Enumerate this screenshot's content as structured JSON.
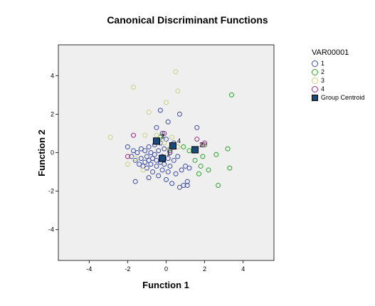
{
  "chart_data": {
    "type": "scatter",
    "title": "Canonical Discriminant Functions",
    "xlabel": "Function 1",
    "ylabel": "Function 2",
    "xlim": [
      -5.6,
      5.6
    ],
    "ylim": [
      -5.6,
      5.6
    ],
    "xticks": [
      -4,
      -2,
      0,
      2,
      4
    ],
    "yticks": [
      -4,
      -2,
      0,
      2,
      4
    ],
    "grid": false,
    "background": "#efefef",
    "legend": {
      "title": "VAR00001",
      "placement": "right"
    },
    "series": [
      {
        "name": "1",
        "color": "#3b4aa6",
        "marker": "circle",
        "points": [
          [
            -2.0,
            0.3
          ],
          [
            -1.8,
            -0.2
          ],
          [
            -1.7,
            0.1
          ],
          [
            -1.6,
            -0.4
          ],
          [
            -1.5,
            0.0
          ],
          [
            -1.4,
            -0.6
          ],
          [
            -1.3,
            0.2
          ],
          [
            -1.3,
            -0.3
          ],
          [
            -1.2,
            -0.7
          ],
          [
            -1.1,
            0.1
          ],
          [
            -1.1,
            -0.5
          ],
          [
            -1.0,
            -0.2
          ],
          [
            -1.0,
            -0.8
          ],
          [
            -0.9,
            0.3
          ],
          [
            -0.9,
            -0.4
          ],
          [
            -0.8,
            0.0
          ],
          [
            -0.8,
            -0.6
          ],
          [
            -0.7,
            -1.0
          ],
          [
            -0.7,
            -0.3
          ],
          [
            -0.6,
            0.4
          ],
          [
            -0.6,
            -0.1
          ],
          [
            -0.5,
            -0.7
          ],
          [
            -0.5,
            -0.4
          ],
          [
            -0.4,
            0.1
          ],
          [
            -0.4,
            -1.2
          ],
          [
            -0.3,
            -0.5
          ],
          [
            -0.3,
            0.5
          ],
          [
            -0.2,
            -0.2
          ],
          [
            -0.2,
            -0.9
          ],
          [
            -0.1,
            0.2
          ],
          [
            -0.1,
            -0.6
          ],
          [
            0.0,
            -1.4
          ],
          [
            0.0,
            0.7
          ],
          [
            0.1,
            -0.3
          ],
          [
            0.1,
            -1.0
          ],
          [
            0.2,
            0.0
          ],
          [
            0.2,
            -0.7
          ],
          [
            0.3,
            -1.6
          ],
          [
            0.4,
            -0.4
          ],
          [
            0.5,
            -1.1
          ],
          [
            0.6,
            -0.2
          ],
          [
            0.7,
            -1.8
          ],
          [
            0.8,
            -0.9
          ],
          [
            0.9,
            -1.7
          ],
          [
            1.0,
            -0.7
          ],
          [
            1.1,
            -1.5
          ],
          [
            1.2,
            -0.8
          ],
          [
            1.1,
            -1.7
          ],
          [
            -1.6,
            -1.5
          ],
          [
            -0.9,
            -1.3
          ],
          [
            -0.3,
            2.2
          ],
          [
            0.1,
            1.6
          ],
          [
            0.7,
            2.0
          ],
          [
            1.6,
            1.3
          ],
          [
            -0.5,
            1.3
          ],
          [
            0.4,
            0.5
          ],
          [
            -0.2,
            1.0
          ]
        ]
      },
      {
        "name": "2",
        "color": "#2ba32b",
        "marker": "circle",
        "points": [
          [
            0.9,
            0.3
          ],
          [
            1.2,
            0.1
          ],
          [
            1.5,
            -0.4
          ],
          [
            1.8,
            -0.7
          ],
          [
            2.0,
            0.4
          ],
          [
            1.9,
            -0.2
          ],
          [
            2.2,
            -0.9
          ],
          [
            2.6,
            -0.1
          ],
          [
            2.7,
            -1.7
          ],
          [
            3.2,
            0.2
          ],
          [
            3.3,
            -0.8
          ],
          [
            3.4,
            3.0
          ],
          [
            1.7,
            -1.1
          ],
          [
            -0.3,
            0.8
          ],
          [
            0.2,
            0.2
          ]
        ]
      },
      {
        "name": "3",
        "color": "#c9cf8a",
        "marker": "circle",
        "points": [
          [
            0.5,
            4.2
          ],
          [
            -1.7,
            3.4
          ],
          [
            0.6,
            3.2
          ],
          [
            0.0,
            2.6
          ],
          [
            -0.9,
            2.1
          ],
          [
            -2.9,
            0.8
          ],
          [
            -1.1,
            0.9
          ],
          [
            -1.6,
            -0.3
          ],
          [
            -0.5,
            0.9
          ],
          [
            0.3,
            0.8
          ],
          [
            -1.2,
            -0.9
          ],
          [
            -2.0,
            -0.6
          ],
          [
            -0.1,
            0.5
          ],
          [
            0.6,
            0.3
          ]
        ]
      },
      {
        "name": "4",
        "color": "#9b2b7d",
        "marker": "circle",
        "points": [
          [
            -1.7,
            0.9
          ],
          [
            -2.0,
            -0.2
          ],
          [
            1.6,
            0.7
          ],
          [
            2.0,
            0.5
          ],
          [
            1.9,
            0.4
          ],
          [
            0.2,
            0.1
          ],
          [
            -0.1,
            1.0
          ]
        ]
      }
    ],
    "centroids": {
      "name": "Group Centroid",
      "color": "#1a4a7a",
      "marker": "square",
      "points": [
        {
          "group": "1",
          "x": -0.2,
          "y": -0.3
        },
        {
          "group": "2",
          "x": 1.5,
          "y": 0.15
        },
        {
          "group": "3",
          "x": -0.5,
          "y": 0.6
        },
        {
          "group": "4",
          "x": 0.35,
          "y": 0.35
        }
      ]
    }
  }
}
